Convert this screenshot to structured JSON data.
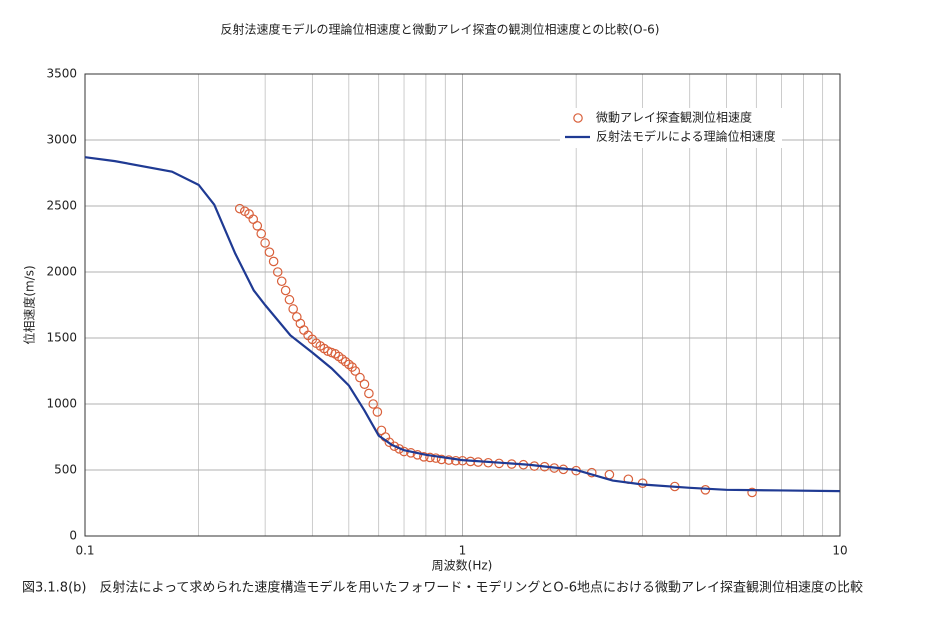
{
  "chart_data": {
    "type": "line",
    "title": "反射法速度モデルの理論位相速度と微動アレイ探査の観測位相速度との比較(O-6)",
    "caption": "図3.1.8(b)　反射法によって求められた速度構造モデルを用いたフォワード・モデリングとO-6地点における微動アレイ探査観測位相速度の比較",
    "x_label": "周波数(Hz)",
    "y_label": "位相速度(m/s)",
    "x_scale": "log",
    "xlim": [
      0.1,
      10
    ],
    "xticks": [
      0.1,
      1,
      10
    ],
    "minor_xticks": [
      0.2,
      0.3,
      0.4,
      0.5,
      0.6,
      0.7,
      0.8,
      0.9,
      2,
      3,
      4,
      5,
      6,
      7,
      8,
      9
    ],
    "ylim": [
      0,
      3500
    ],
    "yticks": [
      0,
      500,
      1000,
      1500,
      2000,
      2500,
      3000,
      3500
    ],
    "grid": true,
    "legend": "upper right",
    "series": [
      {
        "name": "微動アレイ探査観測位相速度",
        "color": "#d9603b",
        "style": "markers",
        "x": [
          0.257,
          0.265,
          0.272,
          0.279,
          0.286,
          0.293,
          0.3,
          0.308,
          0.316,
          0.324,
          0.332,
          0.34,
          0.348,
          0.356,
          0.364,
          0.372,
          0.38,
          0.39,
          0.4,
          0.41,
          0.42,
          0.43,
          0.44,
          0.45,
          0.46,
          0.47,
          0.48,
          0.49,
          0.5,
          0.51,
          0.52,
          0.535,
          0.55,
          0.565,
          0.58,
          0.595,
          0.61,
          0.625,
          0.64,
          0.66,
          0.68,
          0.7,
          0.73,
          0.76,
          0.79,
          0.82,
          0.85,
          0.88,
          0.92,
          0.96,
          1.0,
          1.05,
          1.1,
          1.17,
          1.25,
          1.35,
          1.45,
          1.55,
          1.65,
          1.75,
          1.85,
          2.0,
          2.2,
          2.45,
          2.75,
          3.0,
          3.65,
          4.4,
          5.85
        ],
        "values": [
          2480,
          2460,
          2440,
          2400,
          2350,
          2290,
          2220,
          2150,
          2080,
          2000,
          1930,
          1860,
          1790,
          1720,
          1660,
          1610,
          1560,
          1520,
          1490,
          1460,
          1440,
          1420,
          1400,
          1390,
          1380,
          1360,
          1340,
          1320,
          1300,
          1280,
          1250,
          1200,
          1150,
          1080,
          1000,
          940,
          800,
          750,
          710,
          680,
          660,
          640,
          630,
          615,
          600,
          595,
          590,
          580,
          575,
          570,
          570,
          565,
          560,
          555,
          550,
          545,
          540,
          530,
          525,
          515,
          505,
          495,
          480,
          465,
          430,
          400,
          375,
          350,
          330
        ]
      },
      {
        "name": "反射法モデルによる理論位相速度",
        "color": "#1f3a93",
        "style": "line",
        "x": [
          0.1,
          0.12,
          0.17,
          0.2,
          0.22,
          0.25,
          0.28,
          0.3,
          0.35,
          0.4,
          0.45,
          0.5,
          0.55,
          0.6,
          0.65,
          0.7,
          0.8,
          1,
          1.5,
          2,
          2.5,
          3,
          4,
          5,
          7,
          10
        ],
        "values": [
          2870,
          2840,
          2760,
          2660,
          2510,
          2140,
          1860,
          1750,
          1520,
          1390,
          1270,
          1140,
          950,
          760,
          690,
          650,
          615,
          575,
          540,
          500,
          420,
          390,
          365,
          350,
          345,
          340
        ]
      }
    ]
  }
}
